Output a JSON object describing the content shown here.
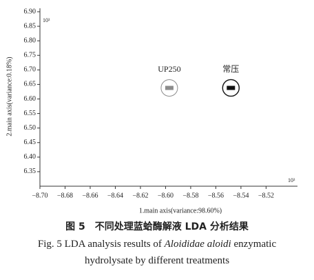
{
  "chart_data": {
    "type": "scatter",
    "xlabel": "1.main axis(variance:98.60%)",
    "ylabel": "2.main axis(variance:0.18%)",
    "x_multiplier": "10³",
    "y_multiplier": "10³",
    "xlim": [
      -8.7,
      -8.495
    ],
    "ylim": [
      6.3,
      6.9
    ],
    "xticks": [
      {
        "value": -8.7,
        "label": "−8.70"
      },
      {
        "value": -8.68,
        "label": "−8.68"
      },
      {
        "value": -8.66,
        "label": "−8.66"
      },
      {
        "value": -8.64,
        "label": "−8.64"
      },
      {
        "value": -8.62,
        "label": "−8.62"
      },
      {
        "value": -8.6,
        "label": "−8.60"
      },
      {
        "value": -8.58,
        "label": "−8.58"
      },
      {
        "value": -8.56,
        "label": "−8.56"
      },
      {
        "value": -8.54,
        "label": "−8.54"
      },
      {
        "value": -8.52,
        "label": "−8.52"
      }
    ],
    "yticks": [
      6.35,
      {
        "value": 6.4,
        "label": "6.40"
      },
      6.45,
      {
        "value": 6.5,
        "label": "6.50"
      },
      6.55,
      {
        "value": 6.6,
        "label": "6.60"
      },
      6.65,
      {
        "value": 6.7,
        "label": "6.70"
      },
      6.75,
      {
        "value": 6.8,
        "label": "6.80"
      },
      6.85,
      {
        "value": 6.9,
        "label": "6.90"
      }
    ],
    "series": [
      {
        "name": "UP250",
        "color": "#8c8c8c",
        "x": [
          -8.597
        ],
        "values": [
          6.638
        ]
      },
      {
        "name": "常压",
        "color": "#111111",
        "x": [
          -8.548
        ],
        "values": [
          6.638
        ]
      }
    ]
  },
  "caption": {
    "cn": "图 5　不同处理蓝蛤酶解液 LDA 分析结果",
    "en": [
      "Fig. 5 LDA analysis results of ",
      "Aloididae aloidi",
      " enzymatic hydrolysate by different treatments"
    ]
  }
}
